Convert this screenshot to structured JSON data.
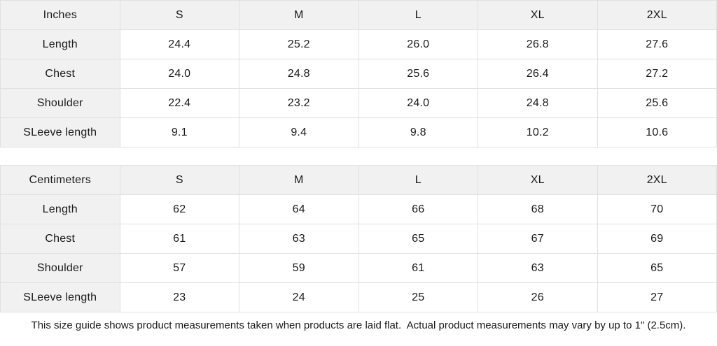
{
  "tables": [
    {
      "unit_label": "Inches",
      "columns": [
        "S",
        "M",
        "L",
        "XL",
        "2XL"
      ],
      "rows": [
        {
          "label": "Length",
          "values": [
            "24.4",
            "25.2",
            "26.0",
            "26.8",
            "27.6"
          ]
        },
        {
          "label": "Chest",
          "values": [
            "24.0",
            "24.8",
            "25.6",
            "26.4",
            "27.2"
          ]
        },
        {
          "label": "Shoulder",
          "values": [
            "22.4",
            "23.2",
            "24.0",
            "24.8",
            "25.6"
          ]
        },
        {
          "label": "SLeeve length",
          "values": [
            "9.1",
            "9.4",
            "9.8",
            "10.2",
            "10.6"
          ]
        }
      ]
    },
    {
      "unit_label": "Centimeters",
      "columns": [
        "S",
        "M",
        "L",
        "XL",
        "2XL"
      ],
      "rows": [
        {
          "label": "Length",
          "values": [
            "62",
            "64",
            "66",
            "68",
            "70"
          ]
        },
        {
          "label": "Chest",
          "values": [
            "61",
            "63",
            "65",
            "67",
            "69"
          ]
        },
        {
          "label": "Shoulder",
          "values": [
            "57",
            "59",
            "61",
            "63",
            "65"
          ]
        },
        {
          "label": "SLeeve length",
          "values": [
            "23",
            "24",
            "25",
            "26",
            "27"
          ]
        }
      ]
    }
  ],
  "footer": {
    "note": "This size guide shows product measurements taken when products are laid flat.  Actual product measurements may vary by up to 1\" (2.5cm)."
  },
  "colors": {
    "header_bg": "#f1f1f1",
    "border": "#e0e0e0",
    "text": "#1a1a1a"
  }
}
